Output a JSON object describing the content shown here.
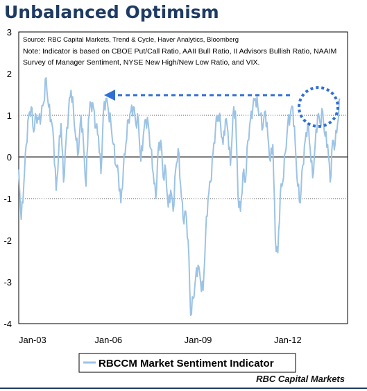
{
  "title": "Unbalanced Optimism",
  "footer": "RBC Capital Markets",
  "chart_data": {
    "type": "line",
    "title": "Unbalanced Optimism",
    "xlabel": "",
    "ylabel": "",
    "x_start": "2003-01",
    "x_end": "2014-01",
    "xticks": [
      "Jan-03",
      "Jan-06",
      "Jan-09",
      "Jan-12"
    ],
    "yticks": [
      3,
      2,
      1,
      0,
      -1,
      -2,
      -3,
      -4
    ],
    "ylim": [
      -4,
      3
    ],
    "gridlines": [
      1,
      -1
    ],
    "annotations": {
      "source": "Source: RBC Capital Markets, Trend & Cycle, Haver Analytics, Bloomberg",
      "note_line1": "Note: Indicator is based on CBOE Put/Call Ratio, AAII Bull Ratio, II Advisors Bullish Ratio, NAAIM",
      "note_line2": "Survey of Manager Sentiment, NYSE New High/New Low Ratio, and VIX."
    },
    "legend_position": "bottom-center",
    "colors": {
      "series": "#9cc3e5",
      "arrow": "#2f6fd6",
      "frame": "#000000"
    },
    "series": [
      {
        "name": "RBCCM Market Sentiment Indicator",
        "points": [
          [
            "2003-01",
            -0.3
          ],
          [
            "2003-02",
            -1.5
          ],
          [
            "2003-03",
            -0.7
          ],
          [
            "2003-04",
            0.3
          ],
          [
            "2003-05",
            1.0
          ],
          [
            "2003-06",
            1.2
          ],
          [
            "2003-07",
            0.6
          ],
          [
            "2003-08",
            1.0
          ],
          [
            "2003-09",
            0.9
          ],
          [
            "2003-10",
            1.0
          ],
          [
            "2003-11",
            1.3
          ],
          [
            "2003-12",
            1.9
          ],
          [
            "2004-01",
            1.2
          ],
          [
            "2004-02",
            0.9
          ],
          [
            "2004-03",
            0.4
          ],
          [
            "2004-04",
            -0.8
          ],
          [
            "2004-05",
            0.1
          ],
          [
            "2004-06",
            0.8
          ],
          [
            "2004-07",
            -0.6
          ],
          [
            "2004-08",
            0.4
          ],
          [
            "2004-09",
            1.1
          ],
          [
            "2004-10",
            1.6
          ],
          [
            "2004-11",
            1.1
          ],
          [
            "2004-12",
            0.4
          ],
          [
            "2005-01",
            0.1
          ],
          [
            "2005-02",
            1.0
          ],
          [
            "2005-03",
            0.3
          ],
          [
            "2005-04",
            -0.7
          ],
          [
            "2005-05",
            0.9
          ],
          [
            "2005-06",
            1.3
          ],
          [
            "2005-07",
            1.2
          ],
          [
            "2005-08",
            0.7
          ],
          [
            "2005-09",
            0.5
          ],
          [
            "2005-10",
            -0.4
          ],
          [
            "2005-11",
            1.1
          ],
          [
            "2005-12",
            1.4
          ],
          [
            "2006-01",
            1.1
          ],
          [
            "2006-02",
            0.8
          ],
          [
            "2006-03",
            0.3
          ],
          [
            "2006-04",
            -0.2
          ],
          [
            "2006-05",
            -0.4
          ],
          [
            "2006-06",
            -1.1
          ],
          [
            "2006-07",
            -0.3
          ],
          [
            "2006-08",
            0.3
          ],
          [
            "2006-09",
            0.9
          ],
          [
            "2006-10",
            1.1
          ],
          [
            "2006-11",
            1.2
          ],
          [
            "2006-12",
            0.8
          ],
          [
            "2007-01",
            0.9
          ],
          [
            "2007-02",
            -0.1
          ],
          [
            "2007-03",
            0.5
          ],
          [
            "2007-04",
            0.9
          ],
          [
            "2007-05",
            0.8
          ],
          [
            "2007-06",
            0.2
          ],
          [
            "2007-07",
            -0.4
          ],
          [
            "2007-08",
            -1.0
          ],
          [
            "2007-09",
            0.2
          ],
          [
            "2007-10",
            0.4
          ],
          [
            "2007-11",
            -0.5
          ],
          [
            "2007-12",
            -0.3
          ],
          [
            "2008-01",
            -1.2
          ],
          [
            "2008-02",
            -0.8
          ],
          [
            "2008-03",
            -1.3
          ],
          [
            "2008-04",
            -0.3
          ],
          [
            "2008-05",
            0.2
          ],
          [
            "2008-06",
            -0.7
          ],
          [
            "2008-07",
            -1.5
          ],
          [
            "2008-08",
            -1.3
          ],
          [
            "2008-09",
            -2.0
          ],
          [
            "2008-10",
            -3.8
          ],
          [
            "2008-11",
            -3.4
          ],
          [
            "2008-12",
            -2.9
          ],
          [
            "2009-01",
            -2.6
          ],
          [
            "2009-02",
            -3.0
          ],
          [
            "2009-03",
            -3.2
          ],
          [
            "2009-04",
            -1.9
          ],
          [
            "2009-05",
            -1.0
          ],
          [
            "2009-06",
            -0.6
          ],
          [
            "2009-07",
            0.1
          ],
          [
            "2009-08",
            0.7
          ],
          [
            "2009-09",
            1.0
          ],
          [
            "2009-10",
            0.8
          ],
          [
            "2009-11",
            0.3
          ],
          [
            "2009-12",
            0.9
          ],
          [
            "2010-01",
            0.6
          ],
          [
            "2010-02",
            -0.2
          ],
          [
            "2010-03",
            1.0
          ],
          [
            "2010-04",
            1.1
          ],
          [
            "2010-05",
            -0.9
          ],
          [
            "2010-06",
            -1.3
          ],
          [
            "2010-07",
            -0.4
          ],
          [
            "2010-08",
            -0.6
          ],
          [
            "2010-09",
            0.4
          ],
          [
            "2010-10",
            0.9
          ],
          [
            "2010-11",
            1.2
          ],
          [
            "2010-12",
            1.4
          ],
          [
            "2011-01",
            1.2
          ],
          [
            "2011-02",
            1.0
          ],
          [
            "2011-03",
            0.7
          ],
          [
            "2011-04",
            1.1
          ],
          [
            "2011-05",
            0.5
          ],
          [
            "2011-06",
            -0.1
          ],
          [
            "2011-07",
            0.3
          ],
          [
            "2011-08",
            -2.0
          ],
          [
            "2011-09",
            -2.3
          ],
          [
            "2011-10",
            -0.9
          ],
          [
            "2011-11",
            -0.6
          ],
          [
            "2011-12",
            0.1
          ],
          [
            "2012-01",
            0.8
          ],
          [
            "2012-02",
            1.0
          ],
          [
            "2012-03",
            1.2
          ],
          [
            "2012-04",
            0.3
          ],
          [
            "2012-05",
            -0.7
          ],
          [
            "2012-06",
            -1.1
          ],
          [
            "2012-07",
            -0.2
          ],
          [
            "2012-08",
            0.4
          ],
          [
            "2012-09",
            0.8
          ],
          [
            "2012-10",
            0.2
          ],
          [
            "2012-11",
            -0.5
          ],
          [
            "2012-12",
            0.3
          ],
          [
            "2013-01",
            1.0
          ],
          [
            "2013-02",
            0.8
          ],
          [
            "2013-03",
            1.1
          ],
          [
            "2013-04",
            0.5
          ],
          [
            "2013-05",
            0.3
          ],
          [
            "2013-06",
            -0.6
          ],
          [
            "2013-07",
            0.4
          ],
          [
            "2013-08",
            0.3
          ],
          [
            "2013-09",
            0.8
          ],
          [
            "2013-10",
            1.4
          ]
        ]
      }
    ]
  }
}
